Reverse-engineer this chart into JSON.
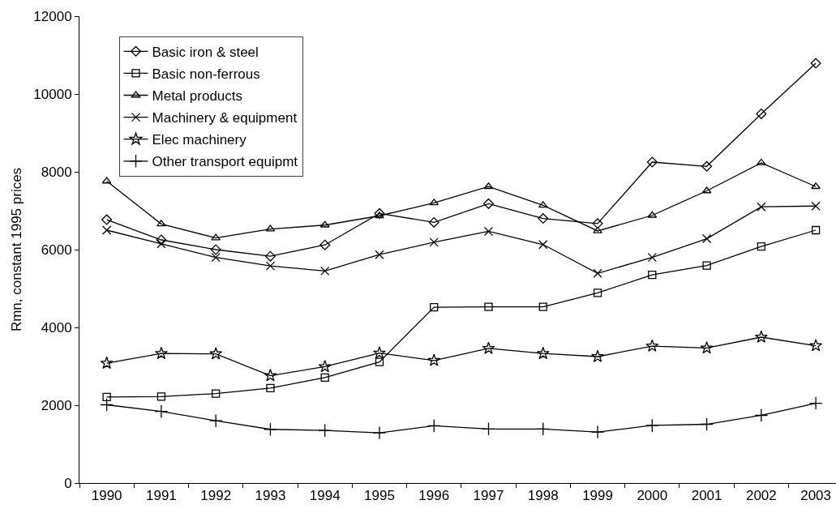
{
  "chart_data": {
    "type": "line",
    "ylabel": "Rmn, constant 1995 prices",
    "categories": [
      "1990",
      "1991",
      "1992",
      "1993",
      "1994",
      "1995",
      "1996",
      "1997",
      "1998",
      "1999",
      "2000",
      "2001",
      "2002",
      "2003"
    ],
    "series": [
      {
        "name": "Basic iron & steel",
        "color": "#000000",
        "marker": "diamond",
        "values": [
          6770,
          6250,
          6000,
          5830,
          6120,
          6930,
          6700,
          7180,
          6800,
          6670,
          8250,
          8140,
          9490,
          10790
        ]
      },
      {
        "name": "Basic non-ferrous",
        "color": "#000000",
        "marker": "square",
        "values": [
          2210,
          2220,
          2300,
          2440,
          2710,
          3110,
          4520,
          4530,
          4530,
          4890,
          5350,
          5590,
          6080,
          6500
        ]
      },
      {
        "name": "Metal products",
        "color": "#000000",
        "marker": "triangle",
        "values": [
          7760,
          6660,
          6300,
          6530,
          6630,
          6870,
          7200,
          7620,
          7140,
          6480,
          6880,
          7510,
          8230,
          7620
        ]
      },
      {
        "name": "Machinery & equipment",
        "color": "#000000",
        "marker": "cross",
        "values": [
          6500,
          6150,
          5800,
          5580,
          5450,
          5870,
          6190,
          6470,
          6130,
          5390,
          5800,
          6280,
          7100,
          7120
        ]
      },
      {
        "name": "Elec machinery",
        "color": "#000000",
        "marker": "star",
        "values": [
          3080,
          3330,
          3320,
          2760,
          2990,
          3340,
          3150,
          3460,
          3330,
          3250,
          3520,
          3470,
          3750,
          3530
        ]
      },
      {
        "name": "Other transport equipmt",
        "color": "#000000",
        "marker": "plus",
        "values": [
          2010,
          1840,
          1600,
          1380,
          1350,
          1290,
          1470,
          1390,
          1390,
          1310,
          1480,
          1510,
          1740,
          2050
        ]
      }
    ],
    "ylim": [
      0,
      12000
    ],
    "yticks": [
      0,
      2000,
      4000,
      6000,
      8000,
      10000,
      12000
    ],
    "grid": false,
    "legend": "top left",
    "line_style": "solid"
  }
}
